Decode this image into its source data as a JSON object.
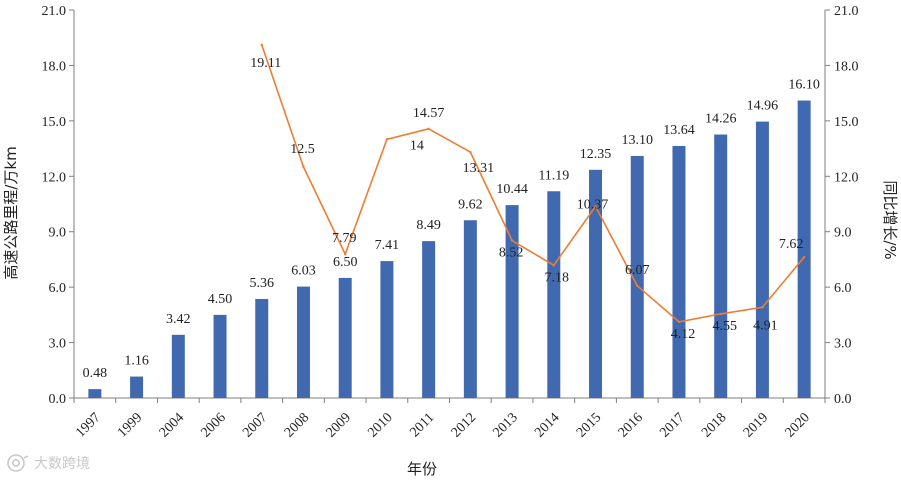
{
  "chart_data": {
    "type": "bar",
    "categories": [
      "1997",
      "1999",
      "2004",
      "2006",
      "2007",
      "2008",
      "2009",
      "2010",
      "2011",
      "2012",
      "2013",
      "2014",
      "2015",
      "2016",
      "2017",
      "2018",
      "2019",
      "2020"
    ],
    "series": [
      {
        "name": "高速公路里程",
        "type": "bar",
        "axis": "left",
        "values": [
          0.48,
          1.16,
          3.42,
          4.5,
          5.36,
          6.03,
          6.5,
          7.41,
          8.49,
          9.62,
          10.44,
          11.19,
          12.35,
          13.1,
          13.64,
          14.26,
          14.96,
          16.1
        ],
        "labels": [
          "0.48",
          "1.16",
          "3.42",
          "4.50",
          "5.36",
          "6.03",
          "6.50",
          "7.41",
          "8.49",
          "9.62",
          "10.44",
          "11.19",
          "12.35",
          "13.10",
          "13.64",
          "14.26",
          "14.96",
          "16.10"
        ],
        "color": "#4169b0"
      },
      {
        "name": "同比增长",
        "type": "line",
        "axis": "right",
        "values": [
          null,
          null,
          null,
          null,
          19.11,
          12.5,
          7.79,
          14,
          14.57,
          13.31,
          8.52,
          7.18,
          10.37,
          6.07,
          4.12,
          4.55,
          4.91,
          7.62
        ],
        "labels": [
          "",
          "",
          "",
          "",
          "19.11",
          "12.5",
          "7.79",
          "14",
          "14.57",
          "13.31",
          "8.52",
          "7.18",
          "10.37",
          "6.07",
          "4.12",
          "4.55",
          "4.91",
          "7.62"
        ],
        "color": "#ed7d31"
      }
    ],
    "ylabel": "高速公路里程/万km",
    "y2label": "同比增长/%",
    "xlabel": "年份",
    "ylim": [
      0,
      21
    ],
    "y2lim": [
      0,
      21
    ],
    "yticks": [
      "0.0",
      "3.0",
      "6.0",
      "9.0",
      "12.0",
      "15.0",
      "18.0",
      "21.0"
    ],
    "y2ticks": [
      "0.0",
      "3.0",
      "6.0",
      "9.0",
      "12.0",
      "15.0",
      "18.0",
      "21.0"
    ],
    "grid": false,
    "legend": "none"
  },
  "watermark": {
    "text": "大数跨境",
    "icon": "camera-icon"
  }
}
